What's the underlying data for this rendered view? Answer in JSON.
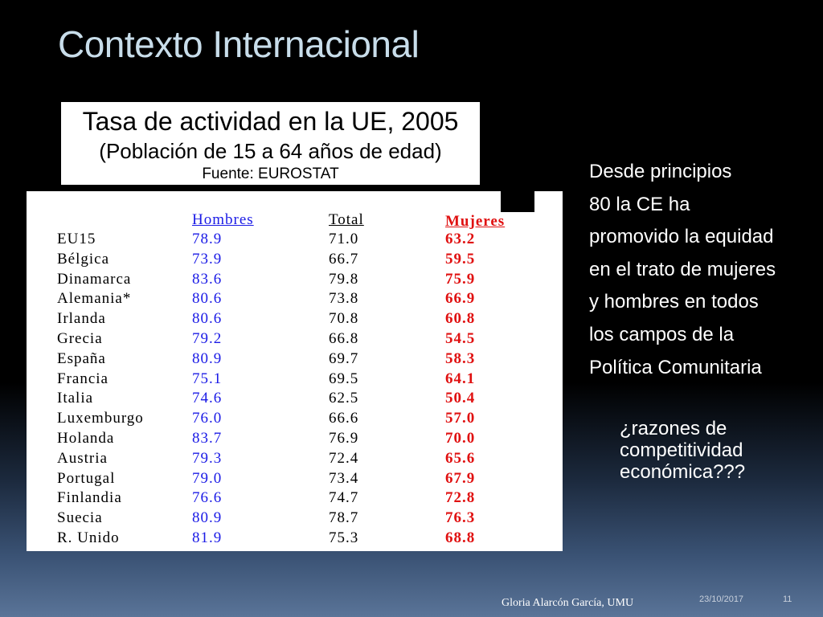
{
  "slide": {
    "title": "Contexto Internacional",
    "chart_header": {
      "title": "Tasa de actividad en la UE, 2005",
      "subtitle": "(Población de 15 a 64 años de edad)",
      "source": "Fuente: EUROSTAT"
    },
    "notes_lines": [
      "Desde principios",
      "80 la CE ha",
      "promovido la equidad",
      "en el trato de mujeres",
      "y hombres en todos",
      "los  campos de la",
      "Política Comunitaria"
    ],
    "question_lines": [
      "¿razones de",
      "competitividad",
      "económica???"
    ],
    "footer": {
      "author": "Gloria Alarcón García,    UMU",
      "date": "23/10/2017",
      "page": "11"
    }
  },
  "colors": {
    "men": "#1a1ae6",
    "women": "#e01010",
    "title": "#c8ddea"
  },
  "chart_data": {
    "type": "table",
    "columns": [
      "Hombres",
      "Total",
      "Mujeres"
    ],
    "rows": [
      {
        "country": "EU15",
        "values": [
          "78.9",
          "71.0",
          "63.2"
        ]
      },
      {
        "country": "Bélgica",
        "values": [
          "73.9",
          "66.7",
          "59.5"
        ]
      },
      {
        "country": "Dinamarca",
        "values": [
          "83.6",
          "79.8",
          "75.9"
        ]
      },
      {
        "country": "Alemania*",
        "values": [
          "80.6",
          "73.8",
          "66.9"
        ]
      },
      {
        "country": "Irlanda",
        "values": [
          "80.6",
          "70.8",
          "60.8"
        ]
      },
      {
        "country": "Grecia",
        "values": [
          "79.2",
          "66.8",
          "54.5"
        ]
      },
      {
        "country": "España",
        "values": [
          "80.9",
          "69.7",
          "58.3"
        ]
      },
      {
        "country": "Francia",
        "values": [
          "75.1",
          "69.5",
          "64.1"
        ]
      },
      {
        "country": "Italia",
        "values": [
          "74.6",
          "62.5",
          "50.4"
        ]
      },
      {
        "country": "Luxemburgo",
        "values": [
          "76.0",
          "66.6",
          "57.0"
        ]
      },
      {
        "country": "Holanda",
        "values": [
          "83.7",
          "76.9",
          "70.0"
        ]
      },
      {
        "country": "Austria",
        "values": [
          "79.3",
          "72.4",
          "65.6"
        ]
      },
      {
        "country": "Portugal",
        "values": [
          "79.0",
          "73.4",
          "67.9"
        ]
      },
      {
        "country": "Finlandia",
        "values": [
          "76.6",
          "74.7",
          "72.8"
        ]
      },
      {
        "country": "Suecia",
        "values": [
          "80.9",
          "78.7",
          "76.3"
        ]
      },
      {
        "country": "R. Unido",
        "values": [
          "81.9",
          "75.3",
          "68.8"
        ]
      }
    ]
  }
}
